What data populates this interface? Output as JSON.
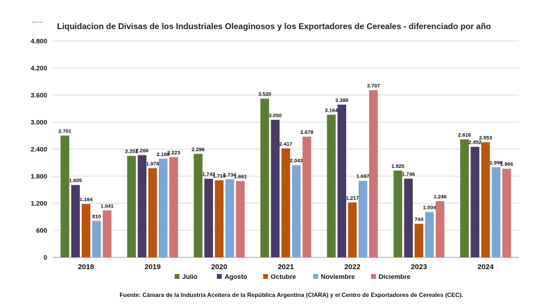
{
  "chart_data": {
    "type": "bar",
    "title": "Liquidacion de Divisas de los Industriales Oleaginosos y los Exportadores de Cereales - diferenciado por año",
    "categories": [
      "2018",
      "2019",
      "2020",
      "2021",
      "2022",
      "2023",
      "2024"
    ],
    "series": [
      {
        "name": "Julio",
        "color": "#5b7d33",
        "values": [
          2701,
          2251,
          2296,
          3520,
          3164,
          1925,
          2616
        ],
        "labels": [
          "2.701",
          "2.251",
          "2.296",
          "3.520",
          "3.164",
          "1.925",
          "2.616"
        ]
      },
      {
        "name": "Agosto",
        "color": "#4a3a66",
        "values": [
          1605,
          2266,
          1743,
          3050,
          3388,
          1746,
          2452
        ],
        "labels": [
          "1.605",
          "2.266",
          "1.743",
          "3.050",
          "3.388",
          "1.746",
          "2.452"
        ]
      },
      {
        "name": "Octubre",
        "color": "#b8560f",
        "values": [
          1184,
          1978,
          1710,
          2417,
          1217,
          744,
          2553
        ],
        "labels": [
          "1.184",
          "1.978",
          "1.710",
          "2.417",
          "1.217",
          "744",
          "2.553"
        ]
      },
      {
        "name": "Noviembre",
        "color": "#7ba6d6",
        "values": [
          810,
          2188,
          1734,
          2043,
          1697,
          1004,
          1998
        ],
        "labels": [
          "810",
          "2.188",
          "1.734",
          "2.043",
          "1.697",
          "1.004",
          "1.998"
        ]
      },
      {
        "name": "Diciembre",
        "color": "#d07476",
        "values": [
          1041,
          2223,
          1691,
          2678,
          3707,
          1246,
          1966
        ],
        "labels": [
          "1.041",
          "2.223",
          "1.691",
          "2.678",
          "3.707",
          "1.246",
          "1.966"
        ]
      }
    ],
    "ylim": [
      0,
      4800
    ],
    "yticks": [
      0,
      600,
      1200,
      1800,
      2400,
      3000,
      3600,
      4200,
      4800
    ],
    "ytick_labels": [
      "0",
      "600",
      "1.200",
      "1.800",
      "2.400",
      "3.000",
      "3.600",
      "4.200",
      "4.800"
    ],
    "grid": true,
    "legend_position": "bottom",
    "xlabel": "",
    "ylabel": ""
  },
  "source": "Fuente: Cámara de la Industria Aceitera de la República Argentina (CIARA) y el Centro de Exportadores de Cereales (CEC).",
  "logo_text": "ciara·cec"
}
